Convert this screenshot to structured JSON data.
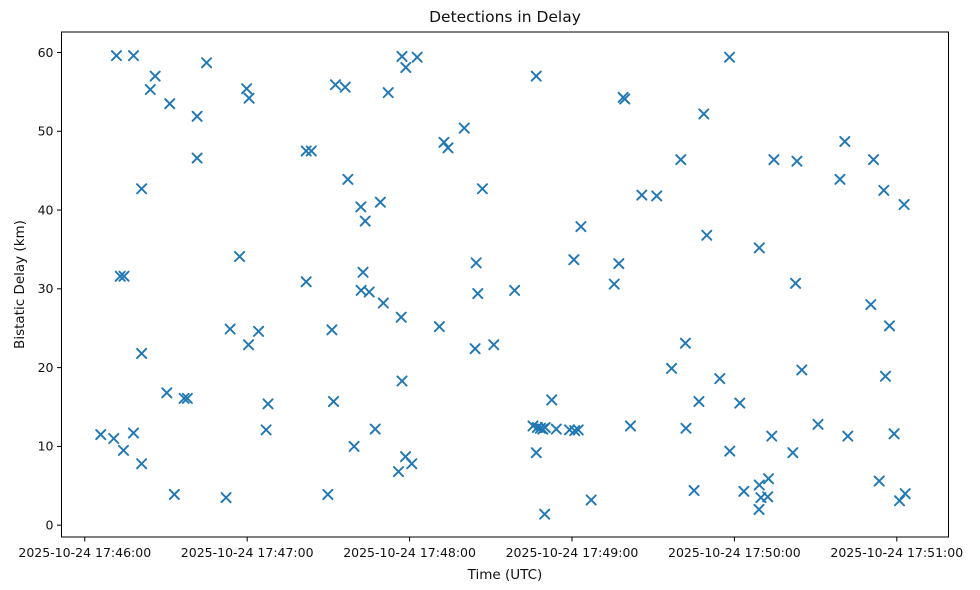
{
  "chart_data": {
    "type": "scatter",
    "title": "Detections in Delay",
    "xlabel": "Time (UTC)",
    "ylabel": "Bistatic Delay (km)",
    "marker": "x",
    "marker_color": "#1f77b4",
    "grid": false,
    "legend": "none",
    "time_base": "2025-10-24 17:46:00",
    "x_unit": "seconds_after_time_base",
    "x_tick_seconds": [
      0,
      60,
      120,
      180,
      240,
      300
    ],
    "x_tick_labels": [
      "2025-10-24 17:46:00",
      "2025-10-24 17:47:00",
      "2025-10-24 17:48:00",
      "2025-10-24 17:49:00",
      "2025-10-24 17:50:00",
      "2025-10-24 17:51:00"
    ],
    "y_ticks": [
      0,
      10,
      20,
      30,
      40,
      50,
      60
    ],
    "y_tick_labels": [
      "0",
      "10",
      "20",
      "30",
      "40",
      "50",
      "60"
    ],
    "xlim_seconds": [
      -8.6,
      319.1
    ],
    "ylim": [
      -1.5,
      62.6
    ],
    "points": [
      [
        11.7,
        59.6
      ],
      [
        18.0,
        59.6
      ],
      [
        45.0,
        58.7
      ],
      [
        26.0,
        57.0
      ],
      [
        24.2,
        55.3
      ],
      [
        59.8,
        55.4
      ],
      [
        60.7,
        54.2
      ],
      [
        31.4,
        53.5
      ],
      [
        41.5,
        51.9
      ],
      [
        41.5,
        46.6
      ],
      [
        21.0,
        42.7
      ],
      [
        57.2,
        34.1
      ],
      [
        13.1,
        31.6
      ],
      [
        14.5,
        31.6
      ],
      [
        53.7,
        24.9
      ],
      [
        64.2,
        24.6
      ],
      [
        60.5,
        22.9
      ],
      [
        21.0,
        21.8
      ],
      [
        30.3,
        16.8
      ],
      [
        36.7,
        16.1
      ],
      [
        37.9,
        16.1
      ],
      [
        67.7,
        15.4
      ],
      [
        67.0,
        12.1
      ],
      [
        5.9,
        11.5
      ],
      [
        10.7,
        11.0
      ],
      [
        18.0,
        11.7
      ],
      [
        14.3,
        9.5
      ],
      [
        21.0,
        7.8
      ],
      [
        33.1,
        3.9
      ],
      [
        52.2,
        3.5
      ],
      [
        117.2,
        59.5
      ],
      [
        122.8,
        59.4
      ],
      [
        118.6,
        58.1
      ],
      [
        92.6,
        55.9
      ],
      [
        96.2,
        55.6
      ],
      [
        112.1,
        54.9
      ],
      [
        140.2,
        50.4
      ],
      [
        132.7,
        48.6
      ],
      [
        134.2,
        47.9
      ],
      [
        81.8,
        47.5
      ],
      [
        83.7,
        47.5
      ],
      [
        97.2,
        43.9
      ],
      [
        146.9,
        42.7
      ],
      [
        102.0,
        40.4
      ],
      [
        109.2,
        41.0
      ],
      [
        103.6,
        38.6
      ],
      [
        144.6,
        33.3
      ],
      [
        102.8,
        32.1
      ],
      [
        81.8,
        30.9
      ],
      [
        102.1,
        29.8
      ],
      [
        105.1,
        29.6
      ],
      [
        145.2,
        29.4
      ],
      [
        110.3,
        28.2
      ],
      [
        116.9,
        26.4
      ],
      [
        131.0,
        25.2
      ],
      [
        91.3,
        24.8
      ],
      [
        144.2,
        22.4
      ],
      [
        151.1,
        22.9
      ],
      [
        117.2,
        18.3
      ],
      [
        91.9,
        15.7
      ],
      [
        107.3,
        12.2
      ],
      [
        99.5,
        10.0
      ],
      [
        118.5,
        8.7
      ],
      [
        120.8,
        7.8
      ],
      [
        115.9,
        6.8
      ],
      [
        89.8,
        3.9
      ],
      [
        166.8,
        57.0
      ],
      [
        198.9,
        54.3
      ],
      [
        199.5,
        54.1
      ],
      [
        228.7,
        52.2
      ],
      [
        220.2,
        46.4
      ],
      [
        205.8,
        41.9
      ],
      [
        211.3,
        41.8
      ],
      [
        183.3,
        37.9
      ],
      [
        229.8,
        36.8
      ],
      [
        180.7,
        33.7
      ],
      [
        197.3,
        33.2
      ],
      [
        238.2,
        59.4
      ],
      [
        158.8,
        29.8
      ],
      [
        195.6,
        30.6
      ],
      [
        221.9,
        23.1
      ],
      [
        216.8,
        19.9
      ],
      [
        234.6,
        18.6
      ],
      [
        172.5,
        15.9
      ],
      [
        226.9,
        15.7
      ],
      [
        165.6,
        12.6
      ],
      [
        167.2,
        12.4
      ],
      [
        168.3,
        12.3
      ],
      [
        169.2,
        12.2
      ],
      [
        170.1,
        12.4
      ],
      [
        174.2,
        12.2
      ],
      [
        179.1,
        12.1
      ],
      [
        181.0,
        12.0
      ],
      [
        182.3,
        12.1
      ],
      [
        201.6,
        12.6
      ],
      [
        222.1,
        12.3
      ],
      [
        238.3,
        9.4
      ],
      [
        166.8,
        9.2
      ],
      [
        225.1,
        4.4
      ],
      [
        187.1,
        3.2
      ],
      [
        169.9,
        1.4
      ],
      [
        280.8,
        48.7
      ],
      [
        254.6,
        46.4
      ],
      [
        263.1,
        46.2
      ],
      [
        291.4,
        46.4
      ],
      [
        279.0,
        43.9
      ],
      [
        295.2,
        42.5
      ],
      [
        302.7,
        40.7
      ],
      [
        249.2,
        35.2
      ],
      [
        262.6,
        30.7
      ],
      [
        290.4,
        28.0
      ],
      [
        297.3,
        25.3
      ],
      [
        264.9,
        19.7
      ],
      [
        295.8,
        18.9
      ],
      [
        242.0,
        15.5
      ],
      [
        270.9,
        12.8
      ],
      [
        253.8,
        11.3
      ],
      [
        281.9,
        11.3
      ],
      [
        299.0,
        11.6
      ],
      [
        261.6,
        9.2
      ],
      [
        293.5,
        5.6
      ],
      [
        252.6,
        5.9
      ],
      [
        249.2,
        5.1
      ],
      [
        243.5,
        4.3
      ],
      [
        249.8,
        3.5
      ],
      [
        252.3,
        3.6
      ],
      [
        249.1,
        2.0
      ],
      [
        303.1,
        4.0
      ],
      [
        301.0,
        3.1
      ]
    ]
  }
}
